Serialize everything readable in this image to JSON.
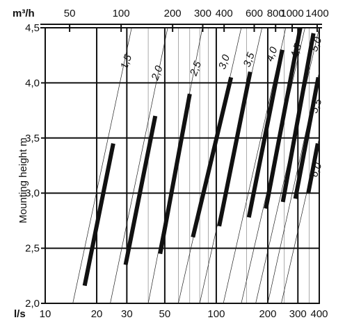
{
  "chart_data": {
    "type": "line",
    "title": "",
    "ylabel": "Mounting height  m",
    "xlabel_bottom_unit": "l/s",
    "xlabel_top_unit": "m³/h",
    "x_scale": "log",
    "xlim": [
      10,
      400
    ],
    "ylim": [
      2.0,
      4.5
    ],
    "grid": true,
    "bottom_ticks": [
      {
        "value": 10,
        "label": "10",
        "major": false
      },
      {
        "value": 20,
        "label": "20",
        "major": true
      },
      {
        "value": 30,
        "label": "30",
        "major": true
      },
      {
        "value": 50,
        "label": "50",
        "major": true
      },
      {
        "value": 100,
        "label": "100",
        "major": true
      },
      {
        "value": 200,
        "label": "200",
        "major": true
      },
      {
        "value": 300,
        "label": "300",
        "major": true
      },
      {
        "value": 400,
        "label": "400",
        "major": true
      }
    ],
    "minor_x_gridlines": [
      40,
      60,
      70,
      80,
      90,
      150,
      250,
      350
    ],
    "top_ticks": [
      {
        "value": 50,
        "label": "50"
      },
      {
        "value": 100,
        "label": "100"
      },
      {
        "value": 200,
        "label": "200"
      },
      {
        "value": 300,
        "label": "300"
      },
      {
        "value": 400,
        "label": "400"
      },
      {
        "value": 600,
        "label": "600"
      },
      {
        "value": 800,
        "label": "800"
      },
      {
        "value": 1000,
        "label": "1000"
      },
      {
        "value": 1400,
        "label": "1400"
      }
    ],
    "y_ticks": [
      {
        "value": 2.0,
        "label": "2,0"
      },
      {
        "value": 2.5,
        "label": "2,5"
      },
      {
        "value": 3.0,
        "label": "3,0"
      },
      {
        "value": 3.5,
        "label": "3,5"
      },
      {
        "value": 4.0,
        "label": "4,0"
      },
      {
        "value": 4.5,
        "label": "4,5"
      }
    ],
    "series": [
      {
        "name": "1,5",
        "thin_start": {
          "x": 14.5,
          "y": 2.0
        },
        "thick": [
          {
            "x": 17,
            "y": 2.16
          },
          {
            "x": 25,
            "y": 3.45
          }
        ],
        "thin_end": {
          "x": 32,
          "y": 4.5
        }
      },
      {
        "name": "2,0",
        "thin_start": {
          "x": 24,
          "y": 2.0
        },
        "thick": [
          {
            "x": 29.5,
            "y": 2.35
          },
          {
            "x": 44,
            "y": 3.7
          }
        ],
        "thin_end": {
          "x": 52,
          "y": 4.5
        }
      },
      {
        "name": "2,5",
        "thin_start": {
          "x": 40,
          "y": 2.0
        },
        "thick": [
          {
            "x": 47,
            "y": 2.45
          },
          {
            "x": 70,
            "y": 3.9
          }
        ],
        "thin_end": {
          "x": 83,
          "y": 4.5
        }
      },
      {
        "name": "3,0",
        "thin_start": {
          "x": 60,
          "y": 2.0
        },
        "thick": [
          {
            "x": 73,
            "y": 2.6
          },
          {
            "x": 122,
            "y": 4.05
          }
        ],
        "thin_end": {
          "x": 140,
          "y": 4.5
        }
      },
      {
        "name": "3,5",
        "thin_start": {
          "x": 80,
          "y": 2.0
        },
        "thick": [
          {
            "x": 104,
            "y": 2.7
          },
          {
            "x": 158,
            "y": 4.1
          }
        ],
        "thin_end": {
          "x": 185,
          "y": 4.5
        }
      },
      {
        "name": "4,0",
        "thin_start": {
          "x": 110,
          "y": 2.0
        },
        "thick": [
          {
            "x": 155,
            "y": 2.78
          },
          {
            "x": 243,
            "y": 4.3
          }
        ],
        "thin_end": {
          "x": 255,
          "y": 4.5
        }
      },
      {
        "name": "4,5",
        "thin_start": {
          "x": 140,
          "y": 2.0
        },
        "thick": [
          {
            "x": 195,
            "y": 2.86
          },
          {
            "x": 310,
            "y": 4.5
          }
        ],
        "thin_end": {
          "x": 330,
          "y": 4.5
        }
      },
      {
        "name": "5,0",
        "thin_start": {
          "x": 170,
          "y": 2.0
        },
        "thick": [
          {
            "x": 245,
            "y": 2.92
          },
          {
            "x": 370,
            "y": 4.45
          }
        ],
        "thin_end": {
          "x": 400,
          "y": 4.5
        }
      },
      {
        "name": "5,5",
        "thin_start": {
          "x": 200,
          "y": 2.0
        },
        "thick": [
          {
            "x": 290,
            "y": 2.95
          },
          {
            "x": 395,
            "y": 4.05
          }
        ],
        "thin_end": {
          "x": 400,
          "y": 4.1
        }
      },
      {
        "name": "6,0",
        "thin_start": {
          "x": 240,
          "y": 2.0
        },
        "thick": [
          {
            "x": 345,
            "y": 3.0
          },
          {
            "x": 392,
            "y": 3.45
          }
        ],
        "thin_end": {
          "x": 400,
          "y": 3.5
        }
      }
    ],
    "curve_label_positions": [
      {
        "name": "1,5",
        "x": 31,
        "y": 4.18
      },
      {
        "name": "2,0",
        "x": 47,
        "y": 4.08
      },
      {
        "name": "2,5",
        "x": 79,
        "y": 4.12
      },
      {
        "name": "3,0",
        "x": 116,
        "y": 4.18
      },
      {
        "name": "3,5",
        "x": 162,
        "y": 4.2
      },
      {
        "name": "4,0",
        "x": 220,
        "y": 4.25
      },
      {
        "name": "4,5",
        "x": 305,
        "y": 4.28
      },
      {
        "name": "5,0",
        "x": 400,
        "y": 4.34
      },
      {
        "name": "5,5",
        "x": 400,
        "y": 3.78
      },
      {
        "name": "6,0",
        "x": 400,
        "y": 3.2
      }
    ]
  }
}
